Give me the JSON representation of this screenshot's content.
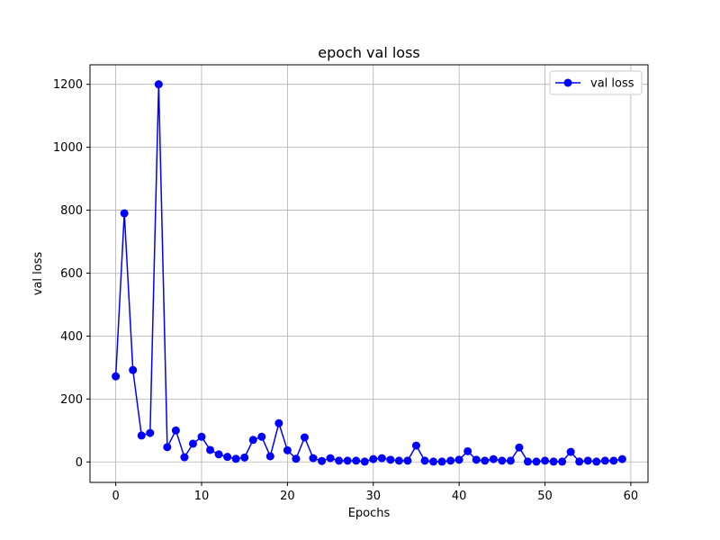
{
  "chart_data": {
    "type": "line",
    "title": "epoch val loss",
    "xlabel": "Epochs",
    "ylabel": "val loss",
    "xlim": [
      -3,
      62
    ],
    "ylim": [
      -65,
      1262
    ],
    "xticks": [
      0,
      10,
      20,
      30,
      40,
      50,
      60
    ],
    "yticks": [
      0,
      200,
      400,
      600,
      800,
      1000,
      1200
    ],
    "grid": true,
    "legend_position": "top-right",
    "series": [
      {
        "name": "val loss",
        "color": "#0000ff",
        "marker": "circle",
        "x": [
          0,
          1,
          2,
          3,
          4,
          5,
          6,
          7,
          8,
          9,
          10,
          11,
          12,
          13,
          14,
          15,
          16,
          17,
          18,
          19,
          20,
          21,
          22,
          23,
          24,
          25,
          26,
          27,
          28,
          29,
          30,
          31,
          32,
          33,
          34,
          35,
          36,
          37,
          38,
          39,
          40,
          41,
          42,
          43,
          44,
          45,
          46,
          47,
          48,
          49,
          50,
          51,
          52,
          53,
          54,
          55,
          56,
          57,
          58,
          59
        ],
        "y": [
          272,
          790,
          292,
          84,
          92,
          1200,
          47,
          100,
          15,
          58,
          80,
          38,
          24,
          16,
          10,
          14,
          70,
          80,
          18,
          123,
          37,
          10,
          78,
          12,
          3,
          12,
          4,
          4,
          4,
          1,
          9,
          12,
          7,
          4,
          4,
          52,
          4,
          1,
          1,
          4,
          7,
          34,
          7,
          4,
          9,
          4,
          4,
          46,
          1,
          1,
          4,
          1,
          1,
          32,
          1,
          4,
          1,
          4,
          4,
          9
        ]
      }
    ]
  }
}
